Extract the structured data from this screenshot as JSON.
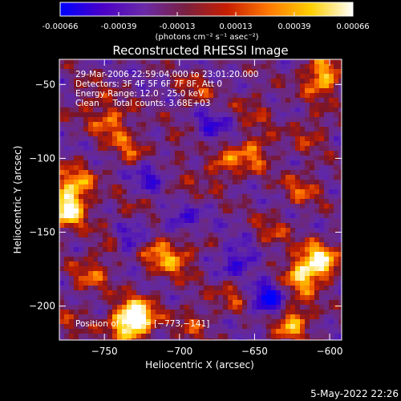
{
  "colorbar": {
    "ticks": [
      "-0.00066",
      "-0.00039",
      "-0.00013",
      "0.00013",
      "0.00039",
      "0.00066"
    ],
    "unit_label": "(photons cm⁻² s⁻¹ asec⁻²)",
    "colors": [
      "#0000ff",
      "#4a00c8",
      "#6a2aa8",
      "#7a2040",
      "#c81e00",
      "#ff7a00",
      "#ffd000",
      "#ffffff"
    ]
  },
  "chart_data": {
    "type": "heatmap",
    "title": "Reconstructed RHESSI Image",
    "xlabel": "Heliocentric X (arcsec)",
    "ylabel": "Heliocentric Y (arcsec)",
    "xlim": [
      -780,
      -592
    ],
    "ylim": [
      -223,
      -33
    ],
    "x_ticks": [
      -750,
      -700,
      -650,
      -600
    ],
    "x_tick_labels": [
      "−750",
      "−700",
      "−650",
      "−600"
    ],
    "y_ticks": [
      -50,
      -100,
      -150,
      -200
    ],
    "y_tick_labels": [
      "−50",
      "−100",
      "−150",
      "−200"
    ],
    "value_range": [
      -0.00066,
      0.00066
    ],
    "bright_regions": [
      {
        "x": -775,
        "y": -135,
        "value": 0.00066
      },
      {
        "x": -770,
        "y": -118,
        "value": 0.0005
      },
      {
        "x": -605,
        "y": -45,
        "value": 0.0006
      },
      {
        "x": -607,
        "y": -170,
        "value": 0.00066
      },
      {
        "x": -620,
        "y": -180,
        "value": 0.0005
      },
      {
        "x": -728,
        "y": -207,
        "value": 0.0006
      },
      {
        "x": -735,
        "y": -212,
        "value": 0.0005
      },
      {
        "x": -625,
        "y": -210,
        "value": 0.00055
      },
      {
        "x": -650,
        "y": -95,
        "value": 0.0004
      },
      {
        "x": -672,
        "y": -105,
        "value": 0.00035
      },
      {
        "x": -745,
        "y": -75,
        "value": 0.0004
      },
      {
        "x": -732,
        "y": -95,
        "value": 0.0003
      },
      {
        "x": -715,
        "y": -162,
        "value": 0.0004
      },
      {
        "x": -700,
        "y": -168,
        "value": 0.00035
      },
      {
        "x": -745,
        "y": -160,
        "value": 0.0003
      },
      {
        "x": -760,
        "y": -180,
        "value": 0.0003
      },
      {
        "x": -690,
        "y": -55,
        "value": 0.00025
      },
      {
        "x": -662,
        "y": -190,
        "value": 0.0003
      },
      {
        "x": -640,
        "y": -152,
        "value": 0.00025
      },
      {
        "x": -618,
        "y": -120,
        "value": 0.0003
      },
      {
        "x": -700,
        "y": -128,
        "value": 0.00025
      },
      {
        "x": -760,
        "y": -60,
        "value": 0.0002
      },
      {
        "x": -612,
        "y": -82,
        "value": 0.00025
      },
      {
        "x": -650,
        "y": -65,
        "value": 0.0002
      },
      {
        "x": -735,
        "y": -140,
        "value": 0.0002
      },
      {
        "x": -690,
        "y": -210,
        "value": 0.00025
      },
      {
        "x": -775,
        "y": -215,
        "value": 0.0002
      },
      {
        "x": -700,
        "y": -92,
        "value": 0.00018
      }
    ],
    "dark_regions": [
      {
        "x": -735,
        "y": -155,
        "value": -0.0005
      },
      {
        "x": -700,
        "y": -140,
        "value": -0.0004
      },
      {
        "x": -660,
        "y": -170,
        "value": -0.0004
      },
      {
        "x": -640,
        "y": -195,
        "value": -0.00055
      },
      {
        "x": -720,
        "y": -110,
        "value": -0.0003
      },
      {
        "x": -680,
        "y": -80,
        "value": -0.0003
      }
    ],
    "annotations": [
      "29-Mar-2006 22:59:04.000 to 23:01:20.000",
      "Detectors: 3F 4F 5F 6F 7F 8F, Att 0",
      "Energy Range: 12.0 - 25.0 keV",
      "Clean     Total counts: 3.68E+03"
    ],
    "peak_label": "Position of Peak = [−773,−141]"
  },
  "footer_date": "5-May-2022 22:26"
}
